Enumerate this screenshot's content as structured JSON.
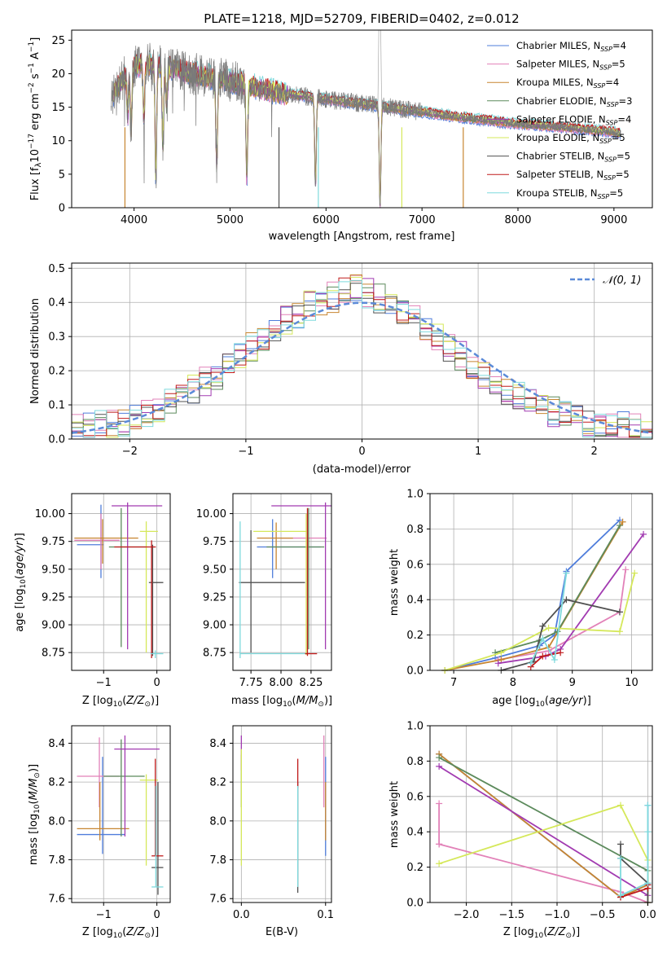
{
  "colors": [
    "#4f7ddb",
    "#e281b8",
    "#c78530",
    "#5c8a5c",
    "#a23bb1",
    "#d5e85a",
    "#505050",
    "#c01b1b",
    "#7fdadd"
  ],
  "spectrum": {
    "title": "PLATE=1218, MJD=52709, FIBERID=0402, z=0.012",
    "xlabel": "wavelength [Angstrom, rest frame]",
    "ylabel": "Flux [fλ10⁻¹⁷ erg cm⁻² s⁻¹ A⁻¹]",
    "xlim": [
      3350,
      9400
    ],
    "ylim": [
      0,
      26.5
    ],
    "xticks": [
      4000,
      5000,
      6000,
      7000,
      8000,
      9000
    ],
    "yticks": [
      0,
      5,
      10,
      15,
      20,
      25
    ],
    "legend": [
      {
        "model": "Chabrier MILES",
        "n": "4"
      },
      {
        "model": "Salpeter MILES",
        "n": "5"
      },
      {
        "model": "Kroupa MILES",
        "n": "4"
      },
      {
        "model": "Chabrier ELODIE",
        "n": "3"
      },
      {
        "model": "Salpeter ELODIE",
        "n": "4"
      },
      {
        "model": "Kroupa ELODIE",
        "n": "5"
      },
      {
        "model": "Chabrier STELIB",
        "n": "5"
      },
      {
        "model": "Salpeter STELIB",
        "n": "5"
      },
      {
        "model": "Kroupa STELIB",
        "n": "5"
      }
    ]
  },
  "residuals": {
    "xlabel": "(data-model)/error",
    "ylabel": "Normed distribution",
    "xlim": [
      -2.5,
      2.5
    ],
    "ylim": [
      0,
      0.515
    ],
    "xticks": [
      -2,
      -1,
      0,
      1,
      2
    ],
    "yticks": [
      0.0,
      0.1,
      0.2,
      0.3,
      0.4,
      0.5
    ],
    "legend": "𝒩(0, 1)"
  },
  "panels": {
    "age_Z": {
      "xlabel": "Z [log10(Z/Z⊙)]",
      "ylabel": "age  [log10(age/yr)]",
      "xticks": [
        -1,
        0
      ],
      "yticks": [
        8.75,
        9.0,
        9.25,
        9.5,
        9.75,
        10.0
      ]
    },
    "age_mass": {
      "xlabel": "mass [log10(M/M⊙)]",
      "xticks": [
        7.75,
        8.0,
        8.25
      ],
      "yticks": [
        8.75,
        9.0,
        9.25,
        9.5,
        9.75,
        10.0
      ]
    },
    "weight_age": {
      "xlabel": "age  [log10(age/yr)]",
      "ylabel": "mass weight",
      "xticks": [
        7,
        8,
        9,
        10
      ],
      "yticks": [
        0.0,
        0.2,
        0.4,
        0.6,
        0.8,
        1.0
      ]
    },
    "mass_Z": {
      "xlabel": "Z [log10(Z/Z⊙)]",
      "ylabel": "mass [log10(M/M⊙)]",
      "xticks": [
        -1,
        0
      ],
      "yticks": [
        7.6,
        7.8,
        8.0,
        8.2,
        8.4
      ]
    },
    "mass_ebv": {
      "xlabel": "E(B-V)",
      "xticks": [
        0.0,
        0.1
      ],
      "yticks": [
        7.6,
        7.8,
        8.0,
        8.2,
        8.4
      ]
    },
    "weight_Z": {
      "xlabel": "Z [log10(Z/Z⊙)]",
      "ylabel": "mass weight",
      "xticks": [
        -2.0,
        -1.5,
        -1.0,
        -0.5,
        0.0
      ],
      "yticks": [
        0.0,
        0.2,
        0.4,
        0.6,
        0.8,
        1.0
      ]
    }
  },
  "chart_data": [
    {
      "type": "line",
      "title": "PLATE=1218, MJD=52709, FIBERID=0402, z=0.012",
      "xlabel": "wavelength [Angstrom, rest frame]",
      "ylabel": "Flux [fλ10⁻¹⁷ erg cm⁻² s⁻¹ A⁻¹]",
      "xlim": [
        3350,
        9400
      ],
      "ylim": [
        0,
        26.5
      ],
      "continuum": {
        "x": [
          3780,
          3900,
          4000,
          4100,
          4300,
          4500,
          4800,
          5100,
          5500,
          6000,
          6500,
          7000,
          7400,
          8000,
          8500,
          9000,
          9070
        ],
        "y": [
          17,
          19.5,
          21,
          21.5,
          21.2,
          20.3,
          19.5,
          18.6,
          17.2,
          16.2,
          15.3,
          14.3,
          13.5,
          12.5,
          12.0,
          11.3,
          11.1
        ]
      },
      "absorption_lines": [
        [
          3934,
          6
        ],
        [
          3969,
          9
        ],
        [
          4102,
          8
        ],
        [
          4227,
          17
        ],
        [
          4300,
          12
        ],
        [
          4340,
          6
        ],
        [
          4861,
          13
        ],
        [
          5175,
          14
        ],
        [
          5890,
          13
        ],
        [
          6563,
          15
        ]
      ]
    },
    {
      "type": "bar",
      "xlabel": "(data-model)/error",
      "ylabel": "Normed distribution",
      "xlim": [
        -2.5,
        2.5
      ],
      "ylim": [
        0,
        0.515
      ],
      "bin_width": 0.1,
      "reference_curve": "N(0,1)",
      "mean_distribution": {
        "x": [
          -2.45,
          -2.05,
          -1.65,
          -1.25,
          -0.85,
          -0.45,
          -0.05,
          0.35,
          0.75,
          1.15,
          1.55,
          1.95,
          2.35
        ],
        "y": [
          0.03,
          0.05,
          0.11,
          0.19,
          0.3,
          0.39,
          0.44,
          0.38,
          0.27,
          0.16,
          0.09,
          0.05,
          0.03
        ]
      }
    },
    {
      "type": "scatter",
      "name": "age vs Z",
      "xlim": [
        -1.6,
        0.25
      ],
      "ylim": [
        8.59,
        10.18
      ],
      "series": [
        {
          "cx": -1.05,
          "cy": 9.72,
          "xe": [
            -1.5,
            -1.0
          ],
          "ye": [
            9.42,
            10.08
          ]
        },
        {
          "cx": -1.05,
          "cy": 9.76,
          "xe": [
            -1.55,
            -0.7
          ],
          "ye": [
            9.5,
            10.0
          ]
        },
        {
          "cx": -1.02,
          "cy": 9.78,
          "xe": [
            -1.55,
            -0.35
          ],
          "ye": [
            9.55,
            9.95
          ]
        },
        {
          "cx": -0.67,
          "cy": 9.7,
          "xe": [
            -0.9,
            -0.2
          ],
          "ye": [
            8.8,
            10.05
          ]
        },
        {
          "cx": -0.55,
          "cy": 10.07,
          "xe": [
            -0.85,
            0.1
          ],
          "ye": [
            8.78,
            10.1
          ]
        },
        {
          "cx": -0.2,
          "cy": 9.84,
          "xe": [
            -0.32,
            0.02
          ],
          "ye": [
            8.75,
            9.93
          ]
        },
        {
          "cx": -0.08,
          "cy": 9.38,
          "xe": [
            -0.15,
            0.12
          ],
          "ye": [
            8.72,
            9.72
          ]
        },
        {
          "cx": -0.1,
          "cy": 9.7,
          "xe": [
            -0.8,
            -0.02
          ],
          "ye": [
            8.7,
            9.76
          ]
        },
        {
          "cx": -0.03,
          "cy": 8.74,
          "xe": [
            -0.12,
            0.12
          ],
          "ye": [
            8.7,
            8.77
          ]
        }
      ]
    },
    {
      "type": "scatter",
      "name": "age vs mass",
      "xlim": [
        7.6,
        8.42
      ],
      "ylim": [
        8.59,
        10.18
      ],
      "series": [
        {
          "cx": 7.93,
          "cy": 9.7,
          "xe": [
            7.8,
            8.33
          ],
          "ye": [
            9.42,
            9.95
          ]
        },
        {
          "cx": 8.22,
          "cy": 9.78,
          "xe": [
            8.0,
            8.38
          ],
          "ye": [
            9.5,
            10.0
          ]
        },
        {
          "cx": 7.96,
          "cy": 9.78,
          "xe": [
            7.8,
            8.1
          ],
          "ye": [
            9.5,
            9.92
          ]
        },
        {
          "cx": 8.23,
          "cy": 9.7,
          "xe": [
            7.88,
            8.36
          ],
          "ye": [
            8.78,
            10.05
          ]
        },
        {
          "cx": 8.37,
          "cy": 10.07,
          "xe": [
            7.92,
            8.42
          ],
          "ye": [
            8.78,
            10.1
          ]
        },
        {
          "cx": 8.21,
          "cy": 9.84,
          "xe": [
            7.77,
            8.22
          ],
          "ye": [
            8.73,
            10.0
          ]
        },
        {
          "cx": 7.75,
          "cy": 9.38,
          "xe": [
            7.65,
            8.2
          ],
          "ye": [
            8.75,
            9.85
          ]
        },
        {
          "cx": 8.22,
          "cy": 8.74,
          "xe": [
            8.2,
            8.3
          ],
          "ye": [
            8.72,
            10.05
          ]
        },
        {
          "cx": 7.66,
          "cy": 8.74,
          "xe": [
            7.66,
            8.2
          ],
          "ye": [
            8.7,
            9.93
          ]
        }
      ]
    },
    {
      "type": "line",
      "name": "mass weight vs age",
      "xlim": [
        6.6,
        10.35
      ],
      "ylim": [
        0,
        1
      ],
      "series": [
        {
          "x": [
            6.85,
            7.7,
            8.45,
            8.7,
            8.9,
            9.8
          ],
          "y": [
            0.0,
            0.07,
            0.14,
            0.2,
            0.56,
            0.85
          ]
        },
        {
          "x": [
            7.75,
            8.6,
            9.8,
            9.9
          ],
          "y": [
            0.06,
            0.11,
            0.33,
            0.57
          ]
        },
        {
          "x": [
            6.85,
            7.8,
            8.6,
            9.85
          ],
          "y": [
            0.0,
            0.06,
            0.13,
            0.84
          ]
        },
        {
          "x": [
            7.7,
            8.45,
            8.75,
            9.8
          ],
          "y": [
            0.1,
            0.17,
            0.22,
            0.82
          ]
        },
        {
          "x": [
            7.75,
            8.55,
            8.8,
            10.2
          ],
          "y": [
            0.04,
            0.08,
            0.12,
            0.77
          ]
        },
        {
          "x": [
            6.85,
            7.8,
            8.6,
            9.8,
            10.05
          ],
          "y": [
            0.0,
            0.1,
            0.24,
            0.22,
            0.55
          ]
        },
        {
          "x": [
            7.8,
            8.35,
            8.5,
            8.9,
            9.8
          ],
          "y": [
            0.0,
            0.05,
            0.25,
            0.4,
            0.33
          ]
        },
        {
          "x": [
            8.3,
            8.5,
            8.8
          ],
          "y": [
            0.02,
            0.08,
            0.1
          ]
        },
        {
          "x": [
            8.3,
            8.5,
            8.7,
            8.9
          ],
          "y": [
            0.04,
            0.18,
            0.06,
            0.55
          ]
        }
      ]
    },
    {
      "type": "scatter",
      "name": "mass vs Z",
      "xlim": [
        -1.6,
        0.25
      ],
      "ylim": [
        7.58,
        8.49
      ],
      "series": [
        {
          "cx": -1.02,
          "cy": 7.93,
          "xe": [
            -1.5,
            -0.6
          ],
          "ye": [
            7.83,
            8.33
          ]
        },
        {
          "cx": -1.08,
          "cy": 8.23,
          "xe": [
            -1.5,
            -0.7
          ],
          "ye": [
            8.07,
            8.43
          ]
        },
        {
          "cx": -1.07,
          "cy": 7.96,
          "xe": [
            -1.5,
            -0.52
          ],
          "ye": [
            7.9,
            8.2
          ]
        },
        {
          "cx": -0.67,
          "cy": 8.23,
          "xe": [
            -1.0,
            -0.23
          ],
          "ye": [
            7.92,
            8.42
          ]
        },
        {
          "cx": -0.6,
          "cy": 8.37,
          "xe": [
            -0.8,
            0.05
          ],
          "ye": [
            7.92,
            8.44
          ]
        },
        {
          "cx": -0.2,
          "cy": 8.21,
          "xe": [
            -0.32,
            0.02
          ],
          "ye": [
            7.77,
            8.24
          ]
        },
        {
          "cx": 0.02,
          "cy": 7.76,
          "xe": [
            -0.1,
            0.12
          ],
          "ye": [
            7.62,
            8.2
          ]
        },
        {
          "cx": -0.03,
          "cy": 7.82,
          "xe": [
            -0.1,
            0.12
          ],
          "ye": [
            7.82,
            8.32
          ]
        },
        {
          "cx": -0.02,
          "cy": 7.66,
          "xe": [
            -0.1,
            0.12
          ],
          "ye": [
            7.66,
            8.18
          ]
        }
      ]
    },
    {
      "type": "scatter",
      "name": "mass vs E(B-V)",
      "xlim": [
        -0.01,
        0.107
      ],
      "ylim": [
        7.58,
        8.49
      ],
      "series": [
        {
          "cx": 0.1,
          "cy": 7.93,
          "xe": [
            0.1,
            0.1
          ],
          "ye": [
            7.82,
            8.33
          ]
        },
        {
          "cx": 0.098,
          "cy": 8.23,
          "xe": [
            0.098,
            0.098
          ],
          "ye": [
            8.07,
            8.44
          ]
        },
        {
          "cx": 0.1,
          "cy": 7.96,
          "xe": [
            0.1,
            0.1
          ],
          "ye": [
            7.9,
            8.2
          ]
        },
        {
          "cx": 0.0,
          "cy": 8.23,
          "xe": [
            0.0,
            0.0
          ],
          "ye": [
            8.07,
            8.34
          ]
        },
        {
          "cx": 0.0,
          "cy": 8.37,
          "xe": [
            0.0,
            0.0
          ],
          "ye": [
            8.26,
            8.44
          ]
        },
        {
          "cx": 0.0,
          "cy": 8.21,
          "xe": [
            0.0,
            0.0
          ],
          "ye": [
            7.77,
            8.37
          ]
        },
        {
          "cx": 0.067,
          "cy": 7.76,
          "xe": [
            0.067,
            0.067
          ],
          "ye": [
            7.63,
            8.2
          ]
        },
        {
          "cx": 0.067,
          "cy": 8.32,
          "xe": [
            0.067,
            0.067
          ],
          "ye": [
            8.17,
            8.32
          ]
        },
        {
          "cx": 0.067,
          "cy": 7.66,
          "xe": [
            0.067,
            0.067
          ],
          "ye": [
            7.66,
            8.18
          ]
        }
      ]
    },
    {
      "type": "line",
      "name": "mass weight vs Z",
      "xlim": [
        -2.4,
        0.05
      ],
      "ylim": [
        0,
        1
      ],
      "series": [
        {
          "x": [
            -2.3,
            -0.3,
            0.0,
            0.0
          ],
          "y": [
            0.84,
            0.03,
            0.1,
            0.55
          ]
        },
        {
          "x": [
            -2.3,
            -2.3,
            -2.3,
            -0.3,
            0.0
          ],
          "y": [
            0.56,
            0.33,
            0.33,
            0.06,
            0.0
          ]
        },
        {
          "x": [
            -2.3,
            -0.3,
            0.0
          ],
          "y": [
            0.84,
            0.03,
            0.1
          ]
        },
        {
          "x": [
            -2.3,
            0.0,
            0.0
          ],
          "y": [
            0.82,
            0.18,
            0.1
          ]
        },
        {
          "x": [
            -2.3,
            0.0,
            0.0
          ],
          "y": [
            0.77,
            0.04,
            0.1
          ]
        },
        {
          "x": [
            -2.3,
            -0.3,
            0.0,
            0.0
          ],
          "y": [
            0.22,
            0.55,
            0.24,
            0.0
          ]
        },
        {
          "x": [
            -0.3,
            -0.3,
            0.0,
            0.0
          ],
          "y": [
            0.33,
            0.25,
            0.11,
            0.0
          ]
        },
        {
          "x": [
            -0.3,
            0.0,
            0.0
          ],
          "y": [
            0.03,
            0.08,
            0.1
          ]
        },
        {
          "x": [
            -0.3,
            -0.3,
            0.0,
            0.0,
            0.0
          ],
          "y": [
            0.25,
            0.04,
            0.11,
            0.4,
            0.55
          ]
        }
      ]
    }
  ]
}
